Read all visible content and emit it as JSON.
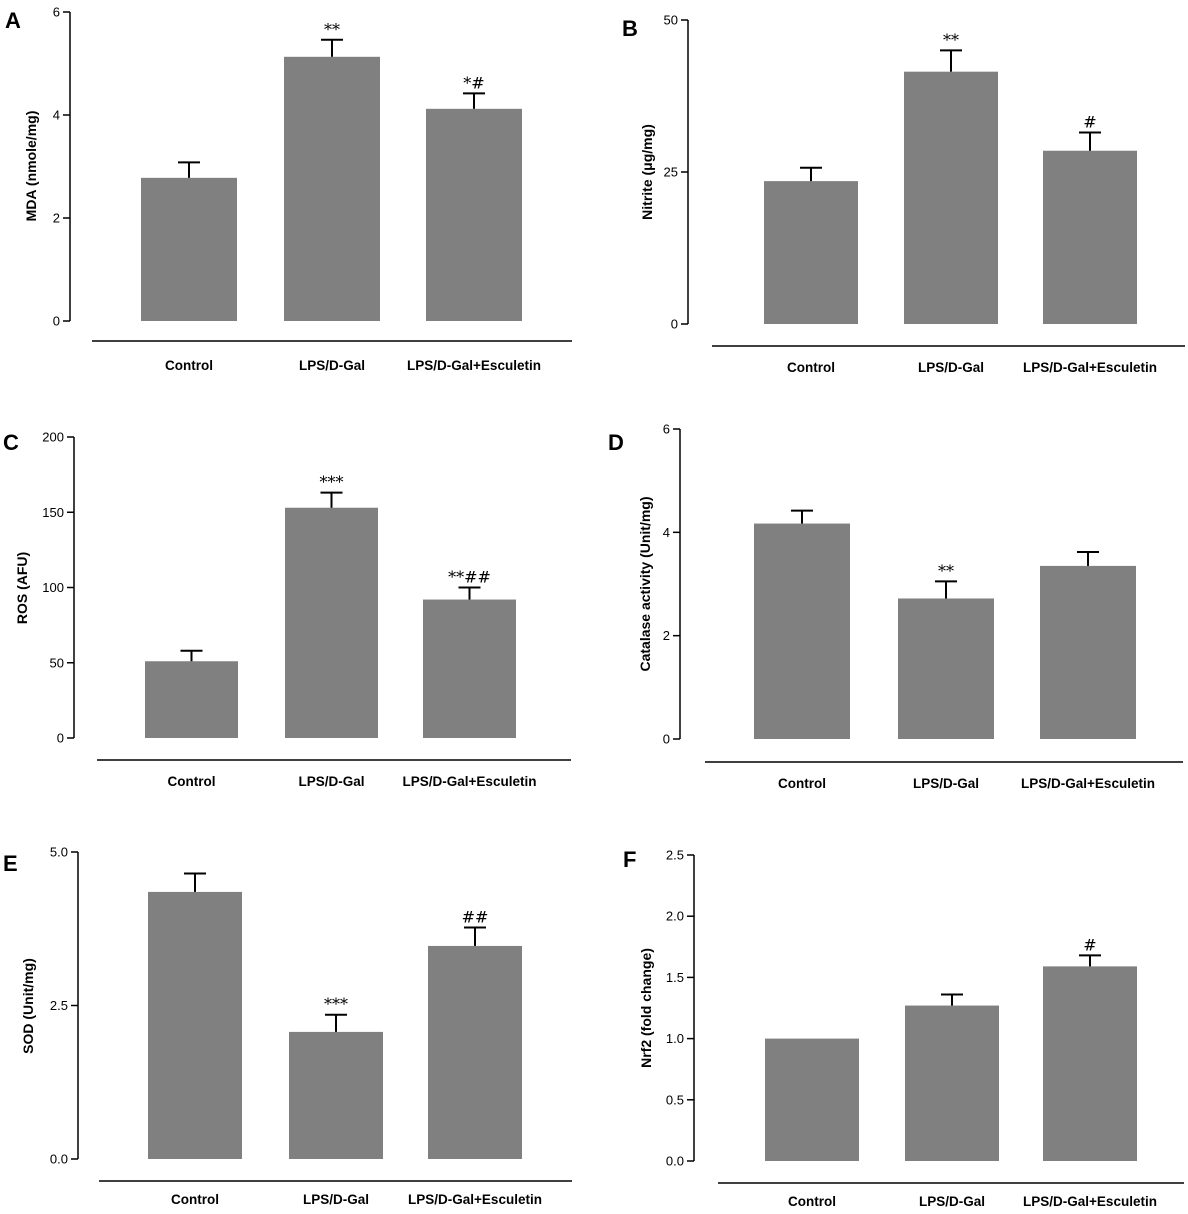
{
  "colors": {
    "bar": "#808080",
    "axis": "#000000",
    "text": "#000000"
  },
  "chart_data": [
    {
      "panel": "A",
      "type": "bar",
      "categories": [
        "Control",
        "LPS/D-Gal",
        "LPS/D-Gal+Esculetin"
      ],
      "values": [
        2.78,
        5.13,
        4.12
      ],
      "errors": [
        0.3,
        0.33,
        0.3
      ],
      "annotations": [
        "",
        "**",
        "*#"
      ],
      "ylabel": "MDA (nmole/mg)",
      "ylim": [
        0,
        6
      ],
      "yticks": [
        0,
        2,
        4,
        6
      ],
      "ytick_labels": [
        "0",
        "2",
        "4",
        "6"
      ]
    },
    {
      "panel": "B",
      "type": "bar",
      "categories": [
        "Control",
        "LPS/D-Gal",
        "LPS/D-Gal+Esculetin"
      ],
      "values": [
        23.5,
        41.5,
        28.5
      ],
      "errors": [
        2.2,
        3.5,
        3.0
      ],
      "annotations": [
        "",
        "**",
        "#"
      ],
      "ylabel": "Nitrite (μg/mg)",
      "ylim": [
        0,
        50
      ],
      "yticks": [
        0,
        25,
        50
      ],
      "ytick_labels": [
        "0",
        "25",
        "50"
      ]
    },
    {
      "panel": "C",
      "type": "bar",
      "categories": [
        "Control",
        "LPS/D-Gal",
        "LPS/D-Gal+Esculetin"
      ],
      "values": [
        51,
        153,
        92
      ],
      "errors": [
        7,
        10,
        8
      ],
      "annotations": [
        "",
        "***",
        "**##"
      ],
      "ylabel": "ROS (AFU)",
      "ylim": [
        0,
        200
      ],
      "yticks": [
        0,
        50,
        100,
        150,
        200
      ],
      "ytick_labels": [
        "0",
        "50",
        "100",
        "150",
        "200"
      ]
    },
    {
      "panel": "D",
      "type": "bar",
      "categories": [
        "Control",
        "LPS/D-Gal",
        "LPS/D-Gal+Esculetin"
      ],
      "values": [
        4.17,
        2.72,
        3.35
      ],
      "errors": [
        0.25,
        0.33,
        0.27
      ],
      "annotations": [
        "",
        "**",
        ""
      ],
      "ylabel": "Catalase activity (Unit/mg)",
      "ylim": [
        0,
        6
      ],
      "yticks": [
        0,
        2,
        4,
        6
      ],
      "ytick_labels": [
        "0",
        "2",
        "4",
        "6"
      ]
    },
    {
      "panel": "E",
      "type": "bar",
      "categories": [
        "Control",
        "LPS/D-Gal",
        "LPS/D-Gal+Esculetin"
      ],
      "values": [
        4.35,
        2.07,
        3.47
      ],
      "errors": [
        0.3,
        0.28,
        0.3
      ],
      "annotations": [
        "",
        "***",
        "##"
      ],
      "ylabel": "SOD (Unit/mg)",
      "ylim": [
        0,
        5
      ],
      "yticks": [
        0,
        2.5,
        5
      ],
      "ytick_labels": [
        "0.0",
        "2.5",
        "5.0"
      ]
    },
    {
      "panel": "F",
      "type": "bar",
      "categories": [
        "Control",
        "LPS/D-Gal",
        "LPS/D-Gal+Esculetin"
      ],
      "values": [
        1.0,
        1.27,
        1.59
      ],
      "errors": [
        0,
        0.09,
        0.09
      ],
      "annotations": [
        "",
        "",
        "#"
      ],
      "ylabel": "Nrf2 (fold change)",
      "ylim": [
        0,
        2.5
      ],
      "yticks": [
        0,
        0.5,
        1,
        1.5,
        2,
        2.5
      ],
      "ytick_labels": [
        "0.0",
        "0.5",
        "1.0",
        "1.5",
        "2.0",
        "2.5"
      ]
    }
  ]
}
